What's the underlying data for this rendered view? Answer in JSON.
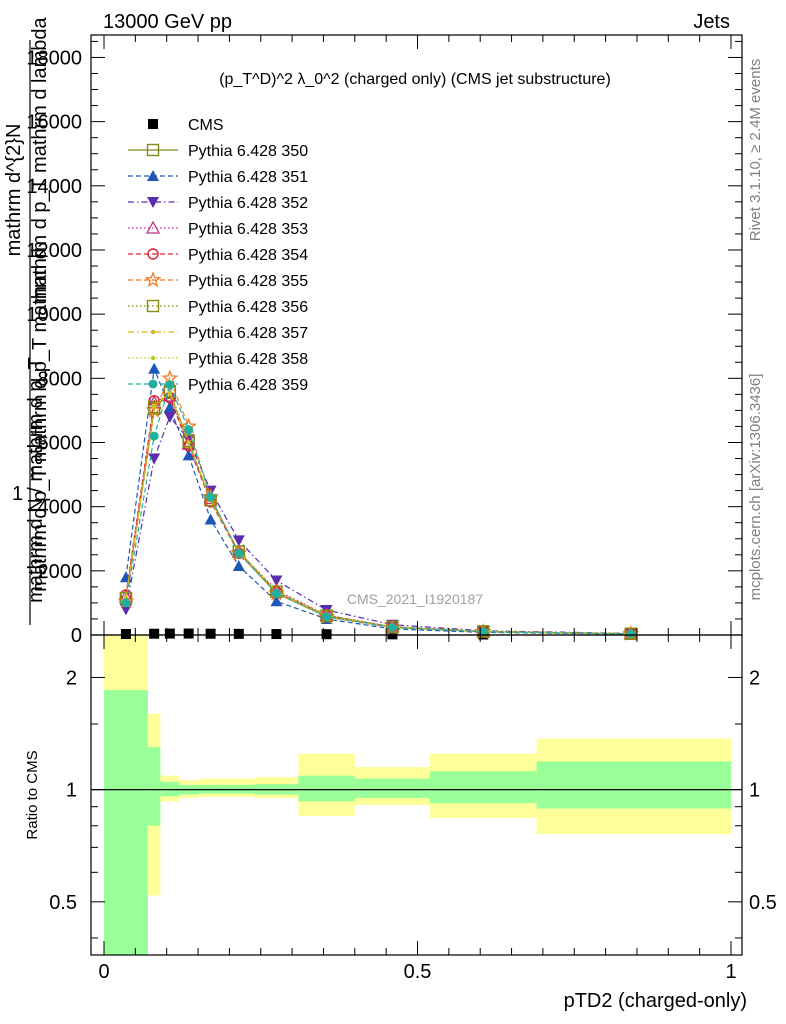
{
  "header": {
    "left": "13000 GeV pp",
    "right": "Jets",
    "plot_title": "(p_T^D)^2 λ_0^2 (charged only) (CMS jet substructure)",
    "side_top": "Rivet 3.1.10, ≥ 2.4M events",
    "side_bottom": "mcplots.cern.ch [arXiv:1306.3436]",
    "watermark": "CMS_2021_I1920187"
  },
  "chart_data": [
    {
      "type": "line",
      "panel": "main",
      "ylabel_top": "mathrm d^{2}N",
      "ylabel_mid": "mathrm d p_T mathrm d lambda",
      "ylabel_mid2": "mathrm d p_T mathrm d p_T mathrm d",
      "ylabel_one": "1",
      "ylabel_bottom": "mathrm d N / mathrm d p_T",
      "xlim": [
        -0.02,
        1.02
      ],
      "ylim": [
        0,
        18700
      ],
      "y_ticks": [
        0,
        2000,
        4000,
        6000,
        8000,
        10000,
        12000,
        14000,
        16000,
        18000
      ],
      "y_tick_labels": [
        "0",
        "2000",
        "4000",
        "6000",
        "8000",
        "10000",
        "12000",
        "14000",
        "16000",
        "18000"
      ],
      "x": [
        0.035,
        0.08,
        0.105,
        0.135,
        0.17,
        0.215,
        0.275,
        0.355,
        0.46,
        0.605,
        0.84
      ],
      "series": [
        {
          "name": "CMS",
          "color": "#000000",
          "marker": "square-filled",
          "dash": "none",
          "values": [
            30,
            40,
            45,
            45,
            40,
            35,
            30,
            25,
            20,
            15,
            10
          ]
        },
        {
          "name": "Pythia 6.428 350",
          "color": "#7f8a1a",
          "marker": "square-open",
          "dash": "solid",
          "values": [
            1150,
            7050,
            7550,
            6000,
            4200,
            2600,
            1350,
            600,
            250,
            110,
            40
          ]
        },
        {
          "name": "Pythia 6.428 351",
          "color": "#1f57b8",
          "marker": "triangle-up",
          "dash": "dashed",
          "values": [
            1800,
            8300,
            7100,
            5600,
            3600,
            2150,
            1050,
            500,
            190,
            80,
            30
          ]
        },
        {
          "name": "Pythia 6.428 352",
          "color": "#5b2bb0",
          "marker": "triangle-down",
          "dash": "dashdot",
          "values": [
            800,
            5500,
            6800,
            6100,
            4500,
            2950,
            1700,
            780,
            320,
            130,
            50
          ]
        },
        {
          "name": "Pythia 6.428 353",
          "color": "#c0308a",
          "marker": "triangle-open",
          "dash": "dotted",
          "values": [
            1200,
            7250,
            7450,
            5950,
            4250,
            2600,
            1400,
            620,
            260,
            110,
            40
          ]
        },
        {
          "name": "Pythia 6.428 354",
          "color": "#e0202a",
          "marker": "circle-open",
          "dash": "dashed",
          "values": [
            1250,
            7300,
            7400,
            5900,
            4150,
            2550,
            1350,
            610,
            250,
            105,
            40
          ]
        },
        {
          "name": "Pythia 6.428 355",
          "color": "#f07820",
          "marker": "star-open",
          "dash": "dashed",
          "values": [
            1050,
            7000,
            8000,
            6500,
            4300,
            2550,
            1300,
            560,
            230,
            100,
            35
          ]
        },
        {
          "name": "Pythia 6.428 356",
          "color": "#8a8a10",
          "marker": "square-open",
          "dash": "dotted",
          "values": [
            1150,
            7100,
            7600,
            6050,
            4200,
            2600,
            1350,
            600,
            250,
            110,
            40
          ]
        },
        {
          "name": "Pythia 6.428 357",
          "color": "#d8b820",
          "marker": "dot",
          "dash": "dashdot",
          "values": [
            1150,
            7150,
            7550,
            6000,
            4200,
            2600,
            1350,
            600,
            250,
            110,
            40
          ]
        },
        {
          "name": "Pythia 6.428 358",
          "color": "#b8cc20",
          "marker": "dot",
          "dash": "dotted",
          "values": [
            1150,
            7100,
            7550,
            6000,
            4200,
            2600,
            1350,
            600,
            250,
            110,
            40
          ]
        },
        {
          "name": "Pythia 6.428 359",
          "color": "#20b0a0",
          "marker": "circle-filled",
          "dash": "dashed",
          "values": [
            1000,
            6200,
            7800,
            6400,
            4300,
            2550,
            1300,
            570,
            240,
            100,
            35
          ]
        }
      ]
    },
    {
      "type": "area",
      "panel": "ratio",
      "ylabel": "Ratio to CMS",
      "xlabel": "pTD2 (charged-only)",
      "x_ticks": [
        0,
        0.5,
        1
      ],
      "x_tick_labels": [
        "0",
        "0.5",
        "1"
      ],
      "y_ticks": [
        0.5,
        1,
        2
      ],
      "y_tick_labels": [
        "0.5",
        "1",
        "2"
      ],
      "ylim": [
        0.36,
        2.6
      ],
      "log_y": true,
      "bins": [
        {
          "lo": 0.0,
          "hi": 0.07,
          "stat_lo": 0.2,
          "stat_hi": 1.85,
          "tot_lo": 0.2,
          "tot_hi": 2.6
        },
        {
          "lo": 0.07,
          "hi": 0.09,
          "stat_lo": 0.8,
          "stat_hi": 1.3,
          "tot_lo": 0.52,
          "tot_hi": 1.6
        },
        {
          "lo": 0.09,
          "hi": 0.12,
          "stat_lo": 0.96,
          "stat_hi": 1.05,
          "tot_lo": 0.93,
          "tot_hi": 1.09
        },
        {
          "lo": 0.12,
          "hi": 0.15,
          "stat_lo": 0.97,
          "stat_hi": 1.03,
          "tot_lo": 0.95,
          "tot_hi": 1.06
        },
        {
          "lo": 0.15,
          "hi": 0.19,
          "stat_lo": 0.975,
          "stat_hi": 1.03,
          "tot_lo": 0.955,
          "tot_hi": 1.07
        },
        {
          "lo": 0.19,
          "hi": 0.24,
          "stat_lo": 0.975,
          "stat_hi": 1.03,
          "tot_lo": 0.955,
          "tot_hi": 1.07
        },
        {
          "lo": 0.24,
          "hi": 0.31,
          "stat_lo": 0.97,
          "stat_hi": 1.035,
          "tot_lo": 0.95,
          "tot_hi": 1.08
        },
        {
          "lo": 0.31,
          "hi": 0.4,
          "stat_lo": 0.93,
          "stat_hi": 1.09,
          "tot_lo": 0.85,
          "tot_hi": 1.25
        },
        {
          "lo": 0.4,
          "hi": 0.52,
          "stat_lo": 0.95,
          "stat_hi": 1.07,
          "tot_lo": 0.91,
          "tot_hi": 1.15
        },
        {
          "lo": 0.52,
          "hi": 0.69,
          "stat_lo": 0.92,
          "stat_hi": 1.12,
          "tot_lo": 0.84,
          "tot_hi": 1.25
        },
        {
          "lo": 0.69,
          "hi": 1.0,
          "stat_lo": 0.89,
          "stat_hi": 1.19,
          "tot_lo": 0.76,
          "tot_hi": 1.37
        }
      ]
    }
  ],
  "colors": {
    "stat_band": "#99ff99",
    "total_band": "#ffff99",
    "frame": "#000000"
  }
}
